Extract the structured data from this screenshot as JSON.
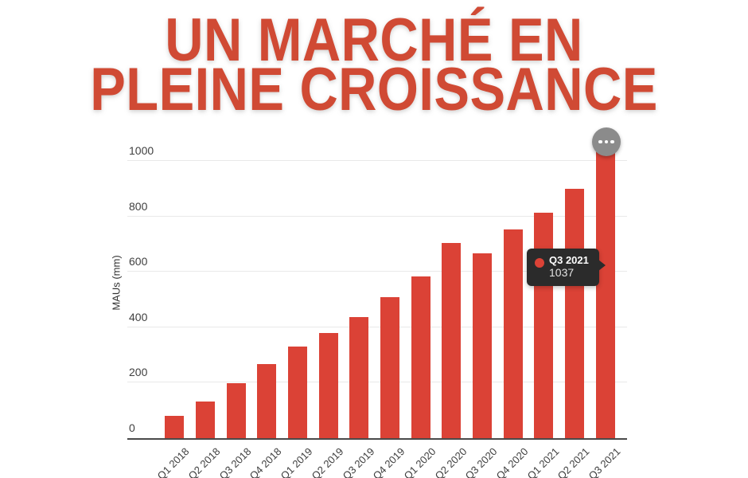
{
  "title": {
    "line1": "UN MARCHÉ EN",
    "line2": "PLEINE CROISSANCE",
    "color": "#d04a34"
  },
  "chart_data": {
    "type": "bar",
    "title": "UN MARCHÉ EN PLEINE CROISSANCE",
    "xlabel": "",
    "ylabel": "MAUs (mm)",
    "categories": [
      "Q1 2018",
      "Q2 2018",
      "Q3 2018",
      "Q4 2018",
      "Q1 2019",
      "Q2 2019",
      "Q3 2019",
      "Q4 2019",
      "Q1 2020",
      "Q2 2020",
      "Q3 2020",
      "Q4 2020",
      "Q1 2021",
      "Q2 2021",
      "Q3 2021"
    ],
    "values": [
      80,
      133,
      198,
      268,
      332,
      380,
      438,
      510,
      583,
      705,
      668,
      755,
      815,
      900,
      1037
    ],
    "yticks": [
      0,
      200,
      400,
      600,
      800,
      1000
    ],
    "ylim": [
      0,
      1050
    ],
    "grid": true,
    "legend": "none",
    "bar_color": "#db4236",
    "axis_color": "#4a4a4a",
    "gridline_color": "#e9e9e9"
  },
  "tooltip": {
    "label": "Q3 2021",
    "value": "1037",
    "bg": "#2b2b2b",
    "dot_color": "#db4236"
  },
  "menu": {
    "icon": "ellipsis"
  }
}
